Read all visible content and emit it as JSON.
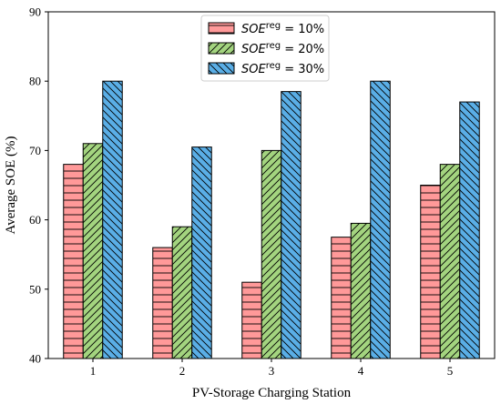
{
  "chart_data": {
    "type": "bar",
    "title": "",
    "xlabel": "PV-Storage Charging Station",
    "ylabel": "Average SOE (%)",
    "categories": [
      "1",
      "2",
      "3",
      "4",
      "5"
    ],
    "ylim": [
      40,
      90
    ],
    "yticks": [
      "40",
      "50",
      "60",
      "70",
      "80",
      "90"
    ],
    "legend_position": "top-center",
    "grid": false,
    "series": [
      {
        "name_base": "SOE",
        "name_sup": "reg",
        "name_eq": " = 10%",
        "values": [
          68,
          56,
          51,
          57.5,
          65
        ],
        "color": "#ff9999",
        "hatch": "horizontal"
      },
      {
        "name_base": "SOE",
        "name_sup": "reg",
        "name_eq": " = 20%",
        "values": [
          71,
          59,
          70,
          59.5,
          68
        ],
        "color": "#a3d47f",
        "hatch": "forward-diagonal"
      },
      {
        "name_base": "SOE",
        "name_sup": "reg",
        "name_eq": " = 30%",
        "values": [
          80,
          70.5,
          78.5,
          80,
          77
        ],
        "color": "#5aaee6",
        "hatch": "back-diagonal"
      }
    ]
  }
}
